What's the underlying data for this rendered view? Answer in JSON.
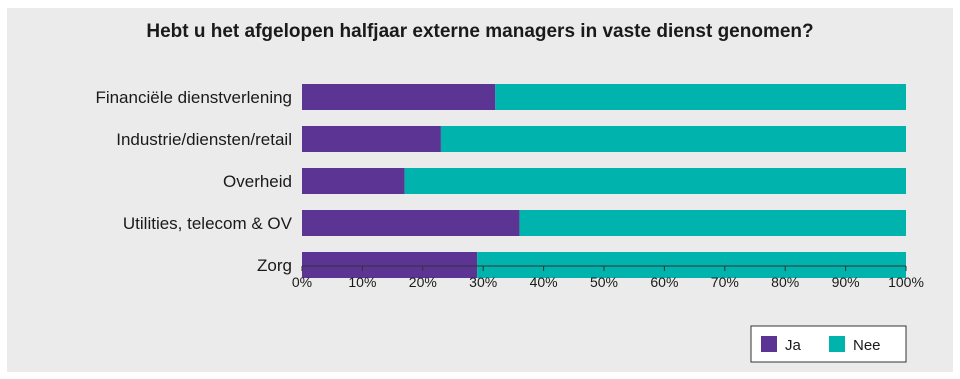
{
  "chart_data": {
    "type": "bar",
    "orientation": "horizontal",
    "stacked": true,
    "title": "Hebt u het afgelopen halfjaar externe managers in vaste dienst genomen?",
    "categories": [
      "Financiële dienstverlening",
      "Industrie/diensten/retail",
      "Overheid",
      "Utilities, telecom & OV",
      "Zorg"
    ],
    "series": [
      {
        "name": "Ja",
        "color": "#5c3594",
        "values": [
          32,
          23,
          17,
          36,
          29
        ]
      },
      {
        "name": "Nee",
        "color": "#00b3ac",
        "values": [
          68,
          77,
          83,
          64,
          71
        ]
      }
    ],
    "x_ticks": [
      "0%",
      "10%",
      "20%",
      "30%",
      "40%",
      "50%",
      "60%",
      "70%",
      "80%",
      "90%",
      "100%"
    ],
    "xlim": [
      0,
      100
    ],
    "grid": false,
    "legend_position": "bottom-right"
  }
}
